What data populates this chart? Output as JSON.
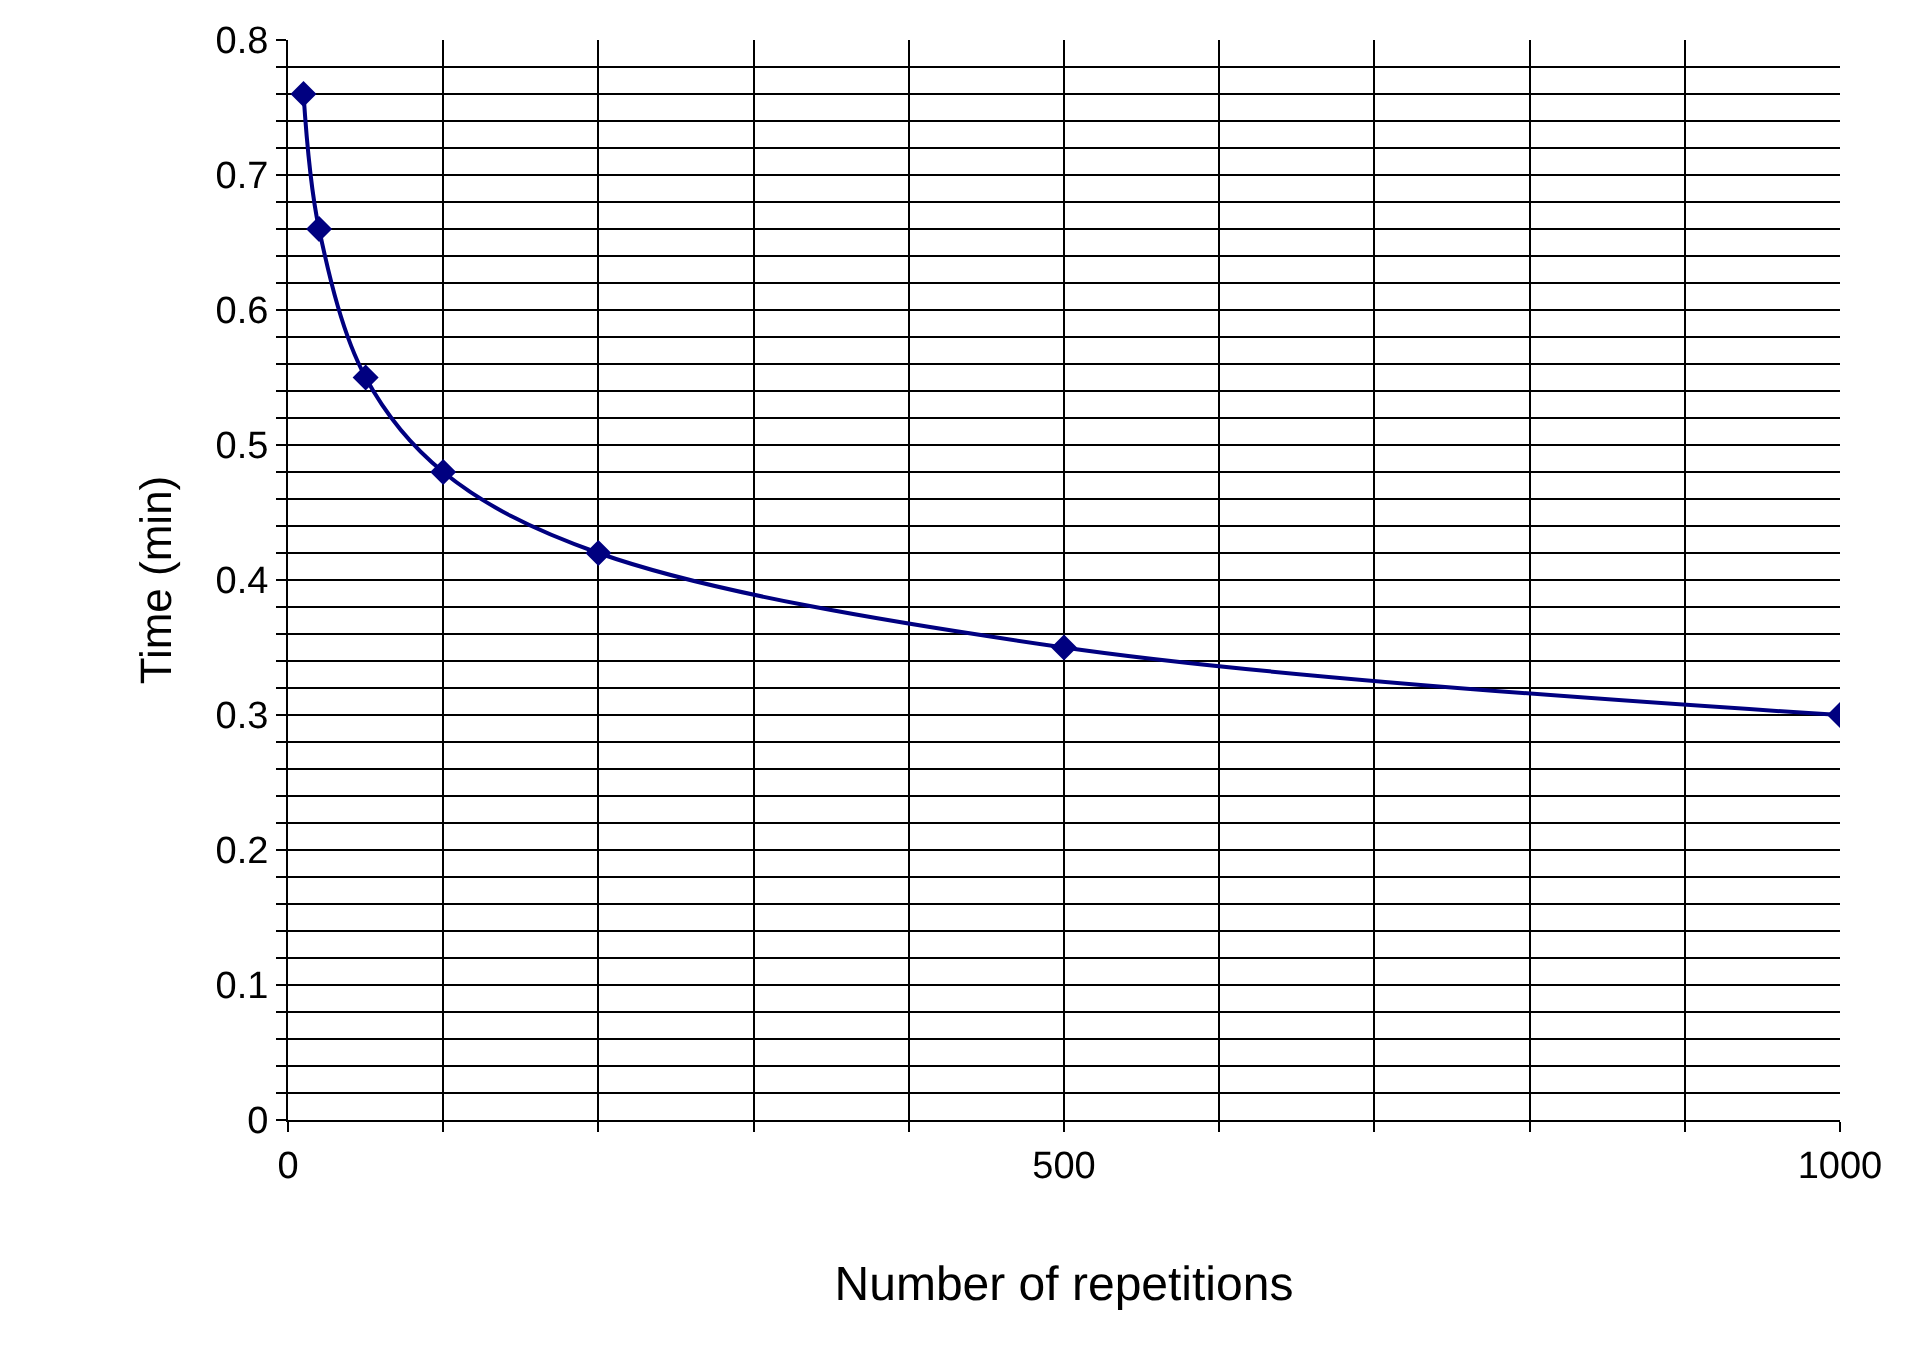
{
  "chart_data": {
    "type": "line",
    "xlabel": "Number of repetitions",
    "ylabel": "Time (min)",
    "x": [
      10,
      20,
      50,
      100,
      200,
      500,
      1000
    ],
    "series": [
      {
        "color": "#000080",
        "values": [
          0.76,
          0.66,
          0.55,
          0.48,
          0.42,
          0.35,
          0.3
        ]
      }
    ],
    "xlim": [
      0,
      1000
    ],
    "xticks": [
      0,
      {
        "value": 100,
        "label": null
      },
      {
        "value": 200,
        "label": null
      },
      {
        "value": 300,
        "label": null
      },
      {
        "value": 400,
        "label": null
      },
      500,
      {
        "value": 600,
        "label": null
      },
      {
        "value": 700,
        "label": null
      },
      {
        "value": 800,
        "label": null
      },
      {
        "value": 900,
        "label": null
      },
      1000
    ],
    "ylim": [
      0,
      0.8
    ],
    "yticks": [
      0,
      {
        "value": 0.02,
        "label": null
      },
      {
        "value": 0.04,
        "label": null
      },
      {
        "value": 0.06,
        "label": null
      },
      {
        "value": 0.08,
        "label": null
      },
      0.1,
      {
        "value": 0.12,
        "label": null
      },
      {
        "value": 0.14,
        "label": null
      },
      {
        "value": 0.16,
        "label": null
      },
      {
        "value": 0.18,
        "label": null
      },
      0.2,
      {
        "value": 0.22,
        "label": null
      },
      {
        "value": 0.24,
        "label": null
      },
      {
        "value": 0.26,
        "label": null
      },
      {
        "value": 0.28,
        "label": null
      },
      0.3,
      {
        "value": 0.32,
        "label": null
      },
      {
        "value": 0.34,
        "label": null
      },
      {
        "value": 0.36,
        "label": null
      },
      {
        "value": 0.38,
        "label": null
      },
      0.4,
      {
        "value": 0.42,
        "label": null
      },
      {
        "value": 0.44,
        "label": null
      },
      {
        "value": 0.46,
        "label": null
      },
      {
        "value": 0.48,
        "label": null
      },
      0.5,
      {
        "value": 0.52,
        "label": null
      },
      {
        "value": 0.54,
        "label": null
      },
      {
        "value": 0.56,
        "label": null
      },
      {
        "value": 0.58,
        "label": null
      },
      0.6,
      {
        "value": 0.62,
        "label": null
      },
      {
        "value": 0.64,
        "label": null
      },
      {
        "value": 0.66,
        "label": null
      },
      {
        "value": 0.68,
        "label": null
      },
      0.7,
      {
        "value": 0.72,
        "label": null
      },
      {
        "value": 0.74,
        "label": null
      },
      {
        "value": 0.76,
        "label": null
      },
      {
        "value": 0.78,
        "label": null
      },
      0.8
    ],
    "grid": true,
    "marker": "diamond",
    "line_style": "solid"
  }
}
